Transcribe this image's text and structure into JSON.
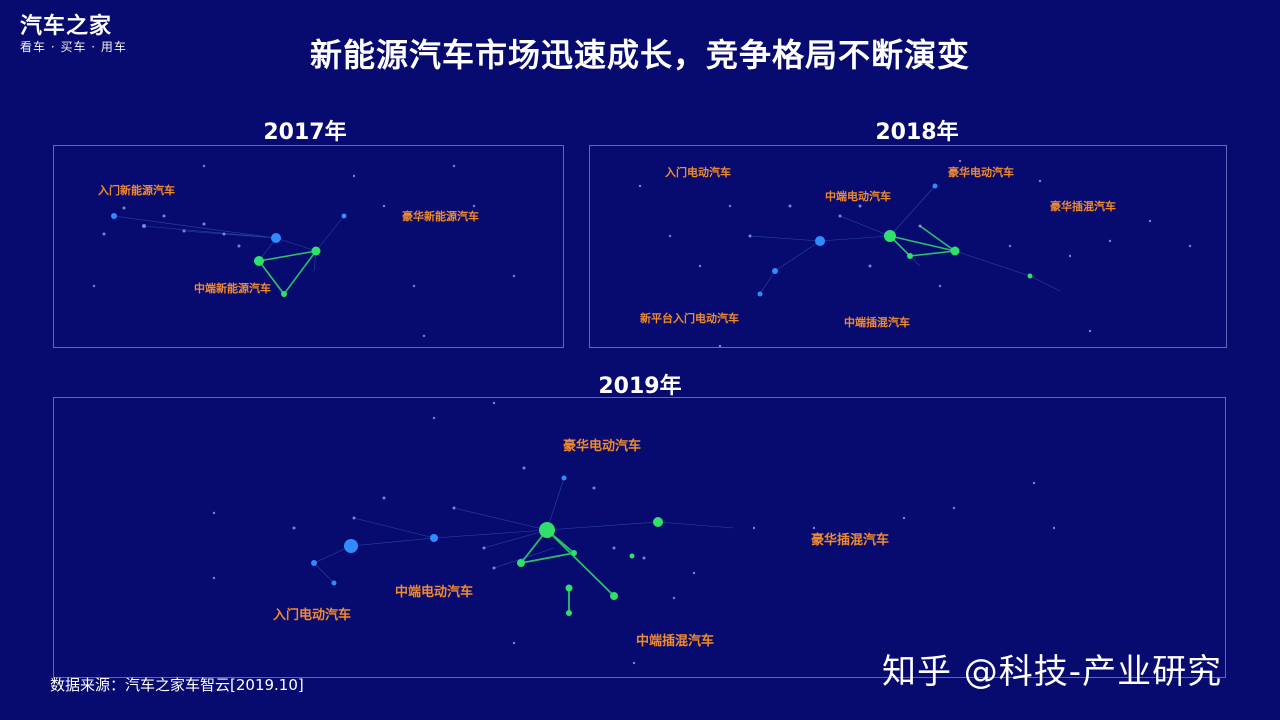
{
  "header": {
    "logo": "汽车之家",
    "tagline": "看车 · 买车 · 用车",
    "title": "新能源汽车市场迅速成长，竞争格局不断演变"
  },
  "panels": {
    "p2017": {
      "year": "2017年",
      "clusters": [
        "入门新能源汽车",
        "豪华新能源汽车",
        "中端新能源汽车"
      ]
    },
    "p2018": {
      "year": "2018年",
      "clusters": [
        "入门电动汽车",
        "中端电动汽车",
        "豪华电动汽车",
        "豪华插混汽车",
        "新平台入门电动汽车",
        "中端插混汽车"
      ]
    },
    "p2019": {
      "year": "2019年",
      "clusters": [
        "豪华电动汽车",
        "豪华插混汽车",
        "中端电动汽车",
        "入门电动汽车",
        "中端插混汽车"
      ]
    }
  },
  "footer": {
    "source": "数据来源：汽车之家车智云[2019.10]",
    "watermark": "知乎 @科技-产业研究"
  },
  "colors": {
    "background": "#070a6e",
    "cluster_label": "#f08a2e",
    "node_blue": "#2f8cff",
    "node_green": "#2fe06a"
  }
}
